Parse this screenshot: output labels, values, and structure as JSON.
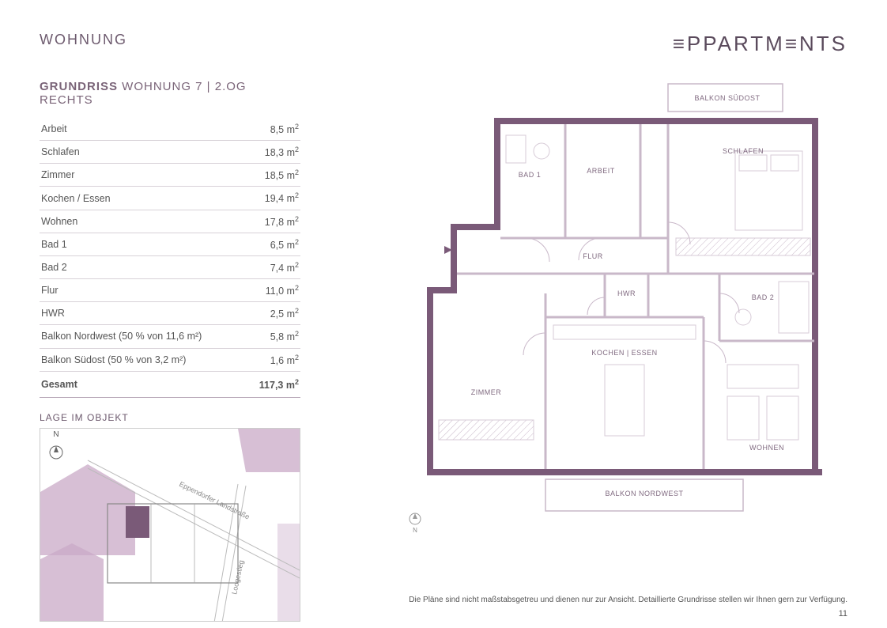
{
  "header": {
    "section": "WOHNUNG",
    "brand": "≡PPARTM≡NTS"
  },
  "subtitle": {
    "bold": "GRUNDRISS",
    "rest": " WOHNUNG 7 | 2.OG RECHTS"
  },
  "rooms": {
    "unit_suffix": " m²",
    "rows": [
      {
        "label": "Arbeit",
        "value": "8,5"
      },
      {
        "label": "Schlafen",
        "value": "18,3"
      },
      {
        "label": "Zimmer",
        "value": "18,5"
      },
      {
        "label": "Kochen / Essen",
        "value": "19,4"
      },
      {
        "label": "Wohnen",
        "value": "17,8"
      },
      {
        "label": "Bad 1",
        "value": "6,5"
      },
      {
        "label": "Bad 2",
        "value": "7,4"
      },
      {
        "label": "Flur",
        "value": "11,0"
      },
      {
        "label": "HWR",
        "value": "2,5"
      },
      {
        "label": "Balkon Nordwest (50 % von 11,6 m²)",
        "value": "5,8"
      },
      {
        "label": "Balkon Südost (50 % von 3,2 m²)",
        "value": "1,6"
      }
    ],
    "total": {
      "label": "Gesamt",
      "value": "117,3"
    }
  },
  "lage": {
    "title": "LAGE IM OBJEKT",
    "north_label": "N",
    "street1": "Eppendorfer Landstraße",
    "street2": "Loogestieg"
  },
  "floorplan": {
    "wall_color": "#7a5a78",
    "wall_light": "#c9b8c9",
    "bg": "#ffffff",
    "north_label": "N",
    "rooms": {
      "balkon_so": "BALKON SÜDOST",
      "schlafen": "SCHLAFEN",
      "arbeit": "ARBEIT",
      "bad1": "BAD 1",
      "flur": "FLUR",
      "hwr": "HWR",
      "bad2": "BAD 2",
      "kochen": "KOCHEN | ESSEN",
      "zimmer": "ZIMMER",
      "wohnen": "WOHNEN",
      "balkon_nw": "BALKON NORDWEST"
    }
  },
  "footer": {
    "disclaimer": "Die Pläne sind nicht maßstabsgetreu und dienen nur zur Ansicht. Detaillierte Grundrisse stellen wir Ihnen gern zur Verfügung.",
    "page": "11"
  },
  "colors": {
    "text_primary": "#6d5a6e",
    "mauve": "#b89ab8",
    "mauve_dark": "#7a5a78",
    "border": "#d8d2d8"
  }
}
